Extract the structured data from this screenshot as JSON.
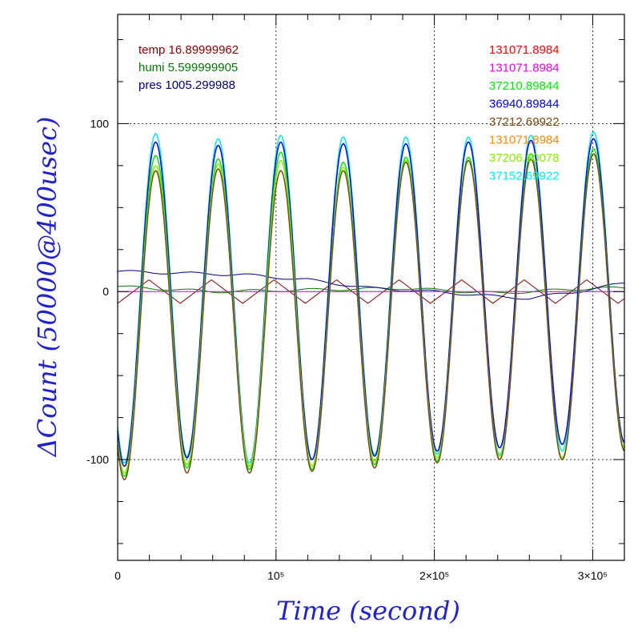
{
  "chart_data": {
    "type": "line",
    "title": "",
    "xlabel": "Time (second)",
    "ylabel": "ΔCount (50000@400usec)",
    "xlim": [
      0,
      320000
    ],
    "ylim": [
      -160,
      165
    ],
    "grid": "dotted at major ticks",
    "x_ticks": [
      {
        "value": 0,
        "label": "0"
      },
      {
        "value": 100000,
        "label": "10⁵"
      },
      {
        "value": 200000,
        "label": "2×10⁵"
      },
      {
        "value": 300000,
        "label": "3×10⁵"
      }
    ],
    "y_ticks": [
      {
        "value": 100,
        "label": "100"
      },
      {
        "value": 0,
        "label": "0"
      },
      {
        "value": -100,
        "label": "-100"
      }
    ],
    "env_annotations": [
      {
        "text": "temp 16.89999962",
        "color": "#8b0000"
      },
      {
        "text": "humi 5.599999905",
        "color": "#007a00"
      },
      {
        "text": "pres 1005.299988",
        "color": "#000080"
      }
    ],
    "legend": [
      {
        "text": "131071.8984",
        "color": "#ff0000"
      },
      {
        "text": "131071.8984",
        "color": "#ee00ee"
      },
      {
        "text": "37210.89844",
        "color": "#00ee00"
      },
      {
        "text": "36940.89844",
        "color": "#0000ee"
      },
      {
        "text": "37212.69922",
        "color": "#7a4a10"
      },
      {
        "text": "131071.8984",
        "color": "#ff8800"
      },
      {
        "text": "37206.60078",
        "color": "#88ee00"
      },
      {
        "text": "37152.69922",
        "color": "#00eeee"
      }
    ],
    "wave": {
      "period": 39500,
      "phase_peak": 24000
    },
    "series": [
      {
        "color": "#00eeee",
        "peaks": [
          94,
          91,
          93,
          92,
          92,
          92,
          93,
          95
        ],
        "troughs": [
          -102,
          -98,
          -102,
          -100,
          -97,
          -97,
          -97,
          -95,
          -93
        ]
      },
      {
        "color": "#0000ee",
        "peaks": [
          89,
          87,
          89,
          88,
          88,
          89,
          90,
          91
        ],
        "troughs": [
          -104,
          -99,
          -104,
          -100,
          -98,
          -95,
          -93,
          -91,
          -90
        ]
      },
      {
        "color": "#00ee00",
        "peaks": [
          81,
          79,
          83,
          77,
          80,
          80,
          82,
          85
        ],
        "troughs": [
          -110,
          -105,
          -106,
          -106,
          -103,
          -101,
          -100,
          -100,
          -95
        ]
      },
      {
        "color": "#88ee00",
        "peaks": [
          75,
          76,
          78,
          74,
          78,
          78,
          79,
          82
        ],
        "troughs": [
          -108,
          -103,
          -104,
          -104,
          -101,
          -99,
          -98,
          -99,
          -93
        ]
      },
      {
        "color": "#7a4a10",
        "peaks": [
          72,
          73,
          72,
          72,
          77,
          78,
          79,
          82
        ],
        "troughs": [
          -112,
          -108,
          -108,
          -107,
          -105,
          -102,
          -100,
          -100,
          -95
        ]
      }
    ],
    "small_series": [
      {
        "color": "#8b0000",
        "type": "triangle",
        "period": 39500,
        "amplitude": 7,
        "phase": 0
      },
      {
        "color": "#007a00",
        "type": "drift",
        "points": [
          [
            0,
            3
          ],
          [
            60000,
            0
          ],
          [
            120000,
            1
          ],
          [
            180000,
            2
          ],
          [
            240000,
            -1
          ],
          [
            300000,
            2
          ],
          [
            320000,
            2
          ]
        ]
      },
      {
        "color": "#000080",
        "type": "drift",
        "points": [
          [
            0,
            12
          ],
          [
            40000,
            11
          ],
          [
            80000,
            10
          ],
          [
            120000,
            7
          ],
          [
            160000,
            2
          ],
          [
            200000,
            0
          ],
          [
            240000,
            -3
          ],
          [
            260000,
            -4
          ],
          [
            290000,
            0
          ],
          [
            320000,
            5
          ]
        ]
      },
      {
        "color": "#ee00ee",
        "type": "flat",
        "value": 0
      }
    ]
  }
}
